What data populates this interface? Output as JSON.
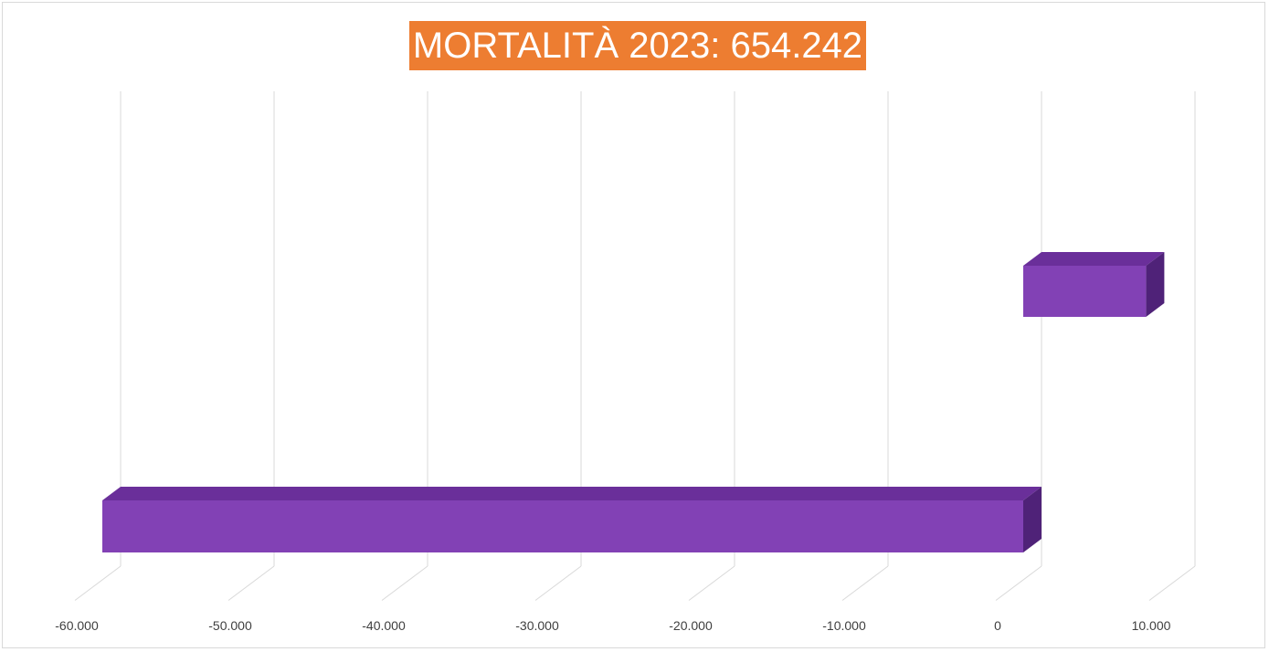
{
  "chart_data": {
    "type": "bar",
    "orientation": "horizontal",
    "title": "MORTALITÀ 2023: 654.242",
    "categories": [
      "",
      ""
    ],
    "values": [
      -60000,
      8000
    ],
    "xlim": [
      -60000,
      10000
    ],
    "ticks": [
      {
        "value": -60000,
        "label": "-60.000"
      },
      {
        "value": -50000,
        "label": "-50.000"
      },
      {
        "value": -40000,
        "label": "-40.000"
      },
      {
        "value": -30000,
        "label": "-30.000"
      },
      {
        "value": -20000,
        "label": "-20.000"
      },
      {
        "value": -10000,
        "label": "-10.000"
      },
      {
        "value": 0,
        "label": "0"
      },
      {
        "value": 10000,
        "label": "10.000"
      }
    ],
    "grid": true,
    "legend": "none",
    "colors": {
      "bar_front": "#8241b5",
      "bar_top": "#6a2f9a",
      "bar_side": "#4f2278",
      "title_bg": "#ed7d31",
      "grid": "#d9d9d9"
    }
  }
}
